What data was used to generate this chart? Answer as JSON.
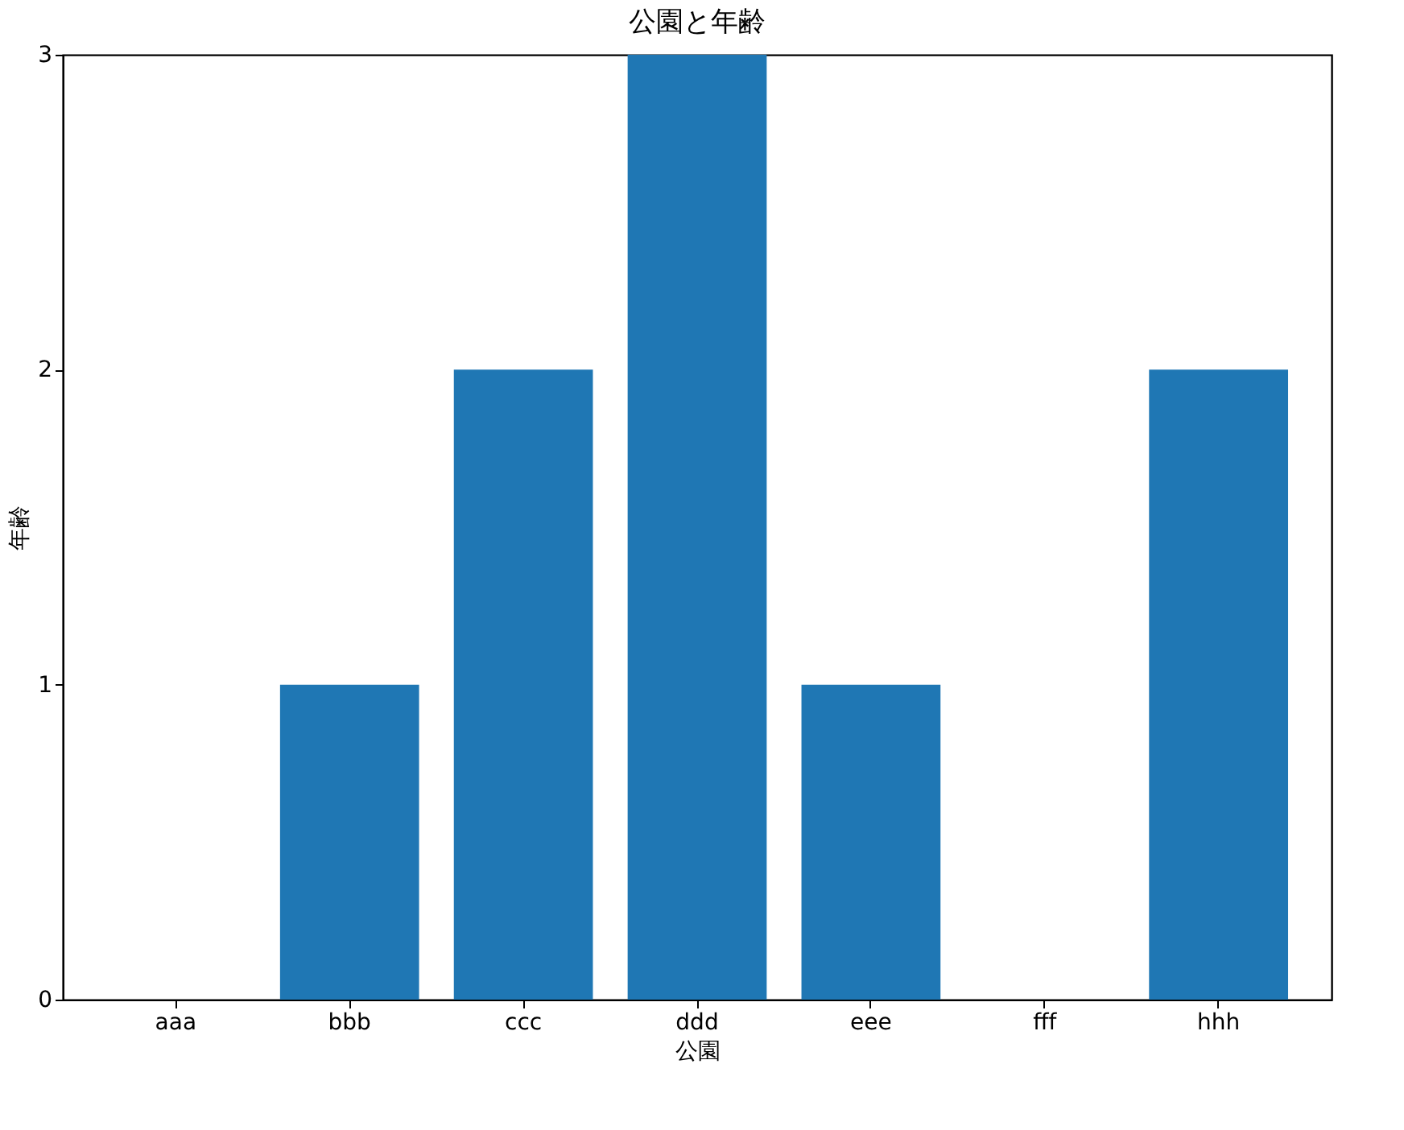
{
  "chart_data": {
    "type": "bar",
    "title": "公園と年齢",
    "xlabel": "公園",
    "ylabel": "年齢",
    "categories": [
      "aaa",
      "bbb",
      "ccc",
      "ddd",
      "eee",
      "fff",
      "hhh"
    ],
    "values": [
      0,
      1,
      2,
      3,
      1,
      0,
      2
    ],
    "color": "#1f77b4",
    "ylim": [
      0,
      3
    ],
    "yticks": [
      0,
      1,
      2,
      3
    ],
    "grid": false
  }
}
